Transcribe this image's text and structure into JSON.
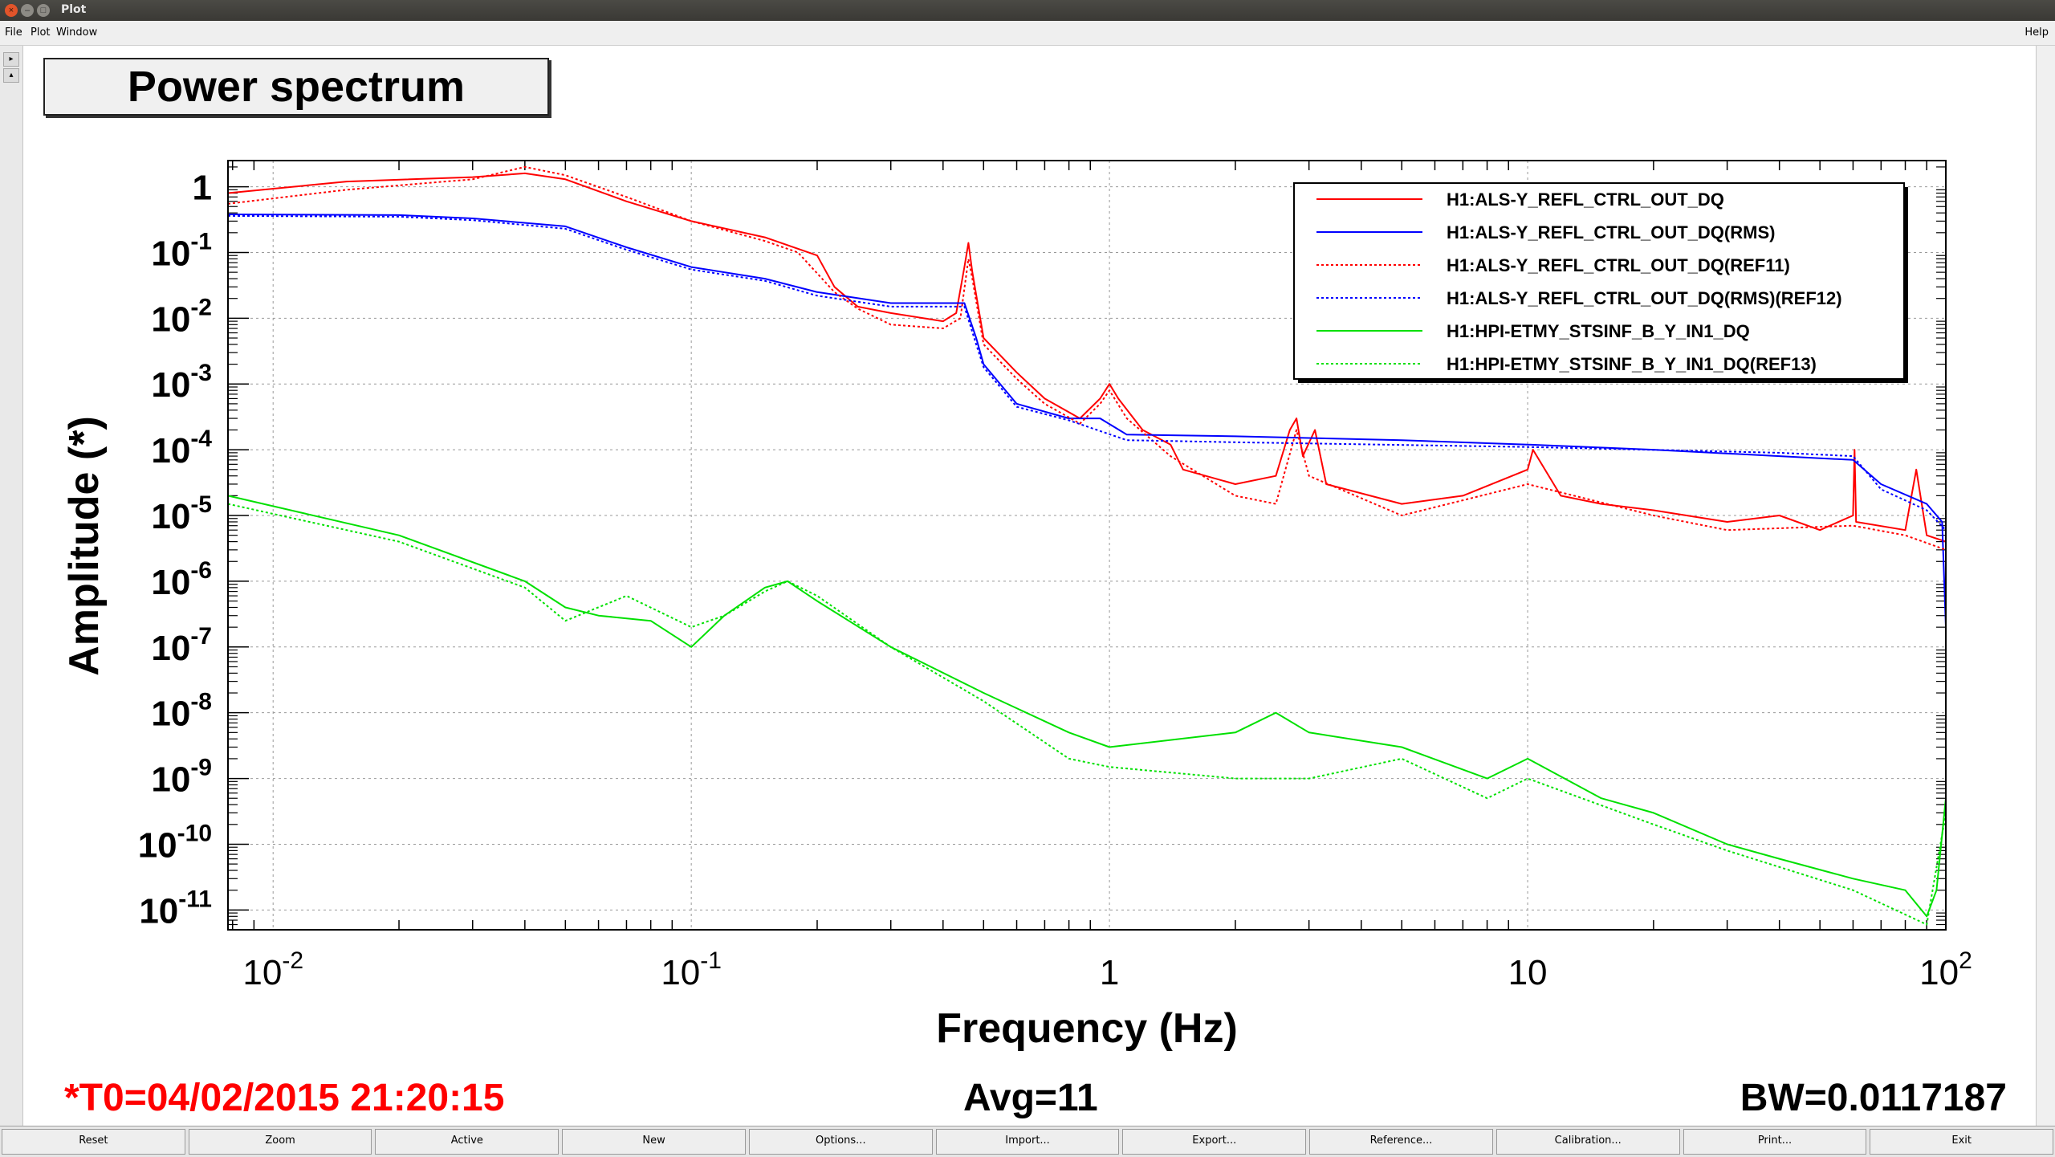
{
  "window": {
    "title": "Plot"
  },
  "menu": {
    "file": "File",
    "plot": "Plot",
    "window": "Window",
    "help": "Help"
  },
  "plot_title": "Power spectrum",
  "footer": {
    "t0": "*T0=04/02/2015 21:20:15",
    "avg": "Avg=11",
    "bw": "BW=0.0117187"
  },
  "buttons": [
    "Reset",
    "Zoom",
    "Active",
    "New",
    "Options...",
    "Import...",
    "Export...",
    "Reference...",
    "Calibration...",
    "Print...",
    "Exit"
  ],
  "colors": {
    "red": "#ff0000",
    "blue": "#0000ff",
    "green": "#00e000"
  },
  "chart_data": {
    "type": "line",
    "title": "Power spectrum",
    "xlabel": "Frequency (Hz)",
    "ylabel": "Amplitude (*)",
    "xscale": "log",
    "yscale": "log",
    "xlim": [
      0.0078,
      100
    ],
    "ylim": [
      5e-12,
      2.5
    ],
    "grid": true,
    "legend_position": "top-right",
    "x_ticks": [
      {
        "value": 0.01,
        "base": "10",
        "exp": "-2"
      },
      {
        "value": 0.1,
        "base": "10",
        "exp": "-1"
      },
      {
        "value": 1,
        "base": "1",
        "exp": ""
      },
      {
        "value": 10,
        "base": "10",
        "exp": ""
      },
      {
        "value": 100,
        "base": "10",
        "exp": "2"
      }
    ],
    "y_ticks": [
      {
        "value": 1,
        "base": "1",
        "exp": ""
      },
      {
        "value": 0.1,
        "base": "10",
        "exp": "-1"
      },
      {
        "value": 0.01,
        "base": "10",
        "exp": "-2"
      },
      {
        "value": 0.001,
        "base": "10",
        "exp": "-3"
      },
      {
        "value": 0.0001,
        "base": "10",
        "exp": "-4"
      },
      {
        "value": 1e-05,
        "base": "10",
        "exp": "-5"
      },
      {
        "value": 1e-06,
        "base": "10",
        "exp": "-6"
      },
      {
        "value": 1e-07,
        "base": "10",
        "exp": "-7"
      },
      {
        "value": 1e-08,
        "base": "10",
        "exp": "-8"
      },
      {
        "value": 1e-09,
        "base": "10",
        "exp": "-9"
      },
      {
        "value": 1e-10,
        "base": "10",
        "exp": "-10"
      },
      {
        "value": 1e-11,
        "base": "10",
        "exp": "-11"
      }
    ],
    "series": [
      {
        "name": "H1:ALS-Y_REFL_CTRL_OUT_DQ",
        "color": "#ff0000",
        "dash": "solid",
        "points": [
          [
            0.0078,
            0.8
          ],
          [
            0.015,
            1.2
          ],
          [
            0.03,
            1.4
          ],
          [
            0.04,
            1.6
          ],
          [
            0.05,
            1.3
          ],
          [
            0.07,
            0.6
          ],
          [
            0.1,
            0.3
          ],
          [
            0.15,
            0.17
          ],
          [
            0.2,
            0.09
          ],
          [
            0.22,
            0.03
          ],
          [
            0.25,
            0.015
          ],
          [
            0.3,
            0.012
          ],
          [
            0.4,
            0.009
          ],
          [
            0.43,
            0.012
          ],
          [
            0.45,
            0.06
          ],
          [
            0.46,
            0.14
          ],
          [
            0.47,
            0.05
          ],
          [
            0.5,
            0.005
          ],
          [
            0.6,
            0.0015
          ],
          [
            0.7,
            0.0006
          ],
          [
            0.85,
            0.0003
          ],
          [
            0.95,
            0.0006
          ],
          [
            1.0,
            0.001
          ],
          [
            1.05,
            0.0006
          ],
          [
            1.2,
            0.0002
          ],
          [
            1.4,
            0.00012
          ],
          [
            1.5,
            5e-05
          ],
          [
            2,
            3e-05
          ],
          [
            2.5,
            4e-05
          ],
          [
            2.7,
            0.0002
          ],
          [
            2.8,
            0.0003
          ],
          [
            2.9,
            8e-05
          ],
          [
            3.1,
            0.0002
          ],
          [
            3.3,
            3e-05
          ],
          [
            5,
            1.5e-05
          ],
          [
            7,
            2e-05
          ],
          [
            10,
            5e-05
          ],
          [
            10.3,
            0.0001
          ],
          [
            12,
            2e-05
          ],
          [
            15,
            1.5e-05
          ],
          [
            20,
            1.2e-05
          ],
          [
            30,
            8e-06
          ],
          [
            40,
            1e-05
          ],
          [
            50,
            6e-06
          ],
          [
            60,
            1e-05
          ],
          [
            60.5,
            0.0001
          ],
          [
            61,
            8e-06
          ],
          [
            80,
            6e-06
          ],
          [
            85,
            5e-05
          ],
          [
            90,
            5e-06
          ],
          [
            100,
            4e-06
          ]
        ]
      },
      {
        "name": "H1:ALS-Y_REFL_CTRL_OUT_DQ(RMS)",
        "color": "#0000ff",
        "dash": "solid",
        "points": [
          [
            0.0078,
            0.38
          ],
          [
            0.02,
            0.37
          ],
          [
            0.03,
            0.33
          ],
          [
            0.05,
            0.25
          ],
          [
            0.07,
            0.12
          ],
          [
            0.1,
            0.06
          ],
          [
            0.15,
            0.04
          ],
          [
            0.2,
            0.025
          ],
          [
            0.3,
            0.017
          ],
          [
            0.45,
            0.017
          ],
          [
            0.48,
            0.005
          ],
          [
            0.5,
            0.002
          ],
          [
            0.6,
            0.0005
          ],
          [
            0.8,
            0.0003
          ],
          [
            0.95,
            0.0003
          ],
          [
            1.1,
            0.00017
          ],
          [
            2,
            0.00016
          ],
          [
            5,
            0.00014
          ],
          [
            10,
            0.00012
          ],
          [
            20,
            0.0001
          ],
          [
            40,
            8e-05
          ],
          [
            60,
            7e-05
          ],
          [
            70,
            3e-05
          ],
          [
            90,
            1.5e-05
          ],
          [
            98,
            8e-06
          ],
          [
            100,
            2e-07
          ]
        ]
      },
      {
        "name": "H1:ALS-Y_REFL_CTRL_OUT_DQ(REF11)",
        "color": "#ff0000",
        "dash": "dotted",
        "points": [
          [
            0.0078,
            0.55
          ],
          [
            0.015,
            0.9
          ],
          [
            0.03,
            1.3
          ],
          [
            0.04,
            2.0
          ],
          [
            0.05,
            1.5
          ],
          [
            0.07,
            0.7
          ],
          [
            0.1,
            0.3
          ],
          [
            0.15,
            0.15
          ],
          [
            0.18,
            0.1
          ],
          [
            0.22,
            0.025
          ],
          [
            0.25,
            0.014
          ],
          [
            0.3,
            0.008
          ],
          [
            0.4,
            0.007
          ],
          [
            0.44,
            0.01
          ],
          [
            0.46,
            0.08
          ],
          [
            0.47,
            0.04
          ],
          [
            0.5,
            0.004
          ],
          [
            0.6,
            0.0012
          ],
          [
            0.7,
            0.0005
          ],
          [
            0.85,
            0.00025
          ],
          [
            0.95,
            0.0005
          ],
          [
            1.0,
            0.0008
          ],
          [
            1.1,
            0.0003
          ],
          [
            1.4,
            8e-05
          ],
          [
            2,
            2e-05
          ],
          [
            2.5,
            1.5e-05
          ],
          [
            2.8,
            0.0002
          ],
          [
            3,
            4e-05
          ],
          [
            5,
            1e-05
          ],
          [
            10,
            3e-05
          ],
          [
            20,
            1e-05
          ],
          [
            30,
            6e-06
          ],
          [
            60,
            7e-06
          ],
          [
            80,
            5e-06
          ],
          [
            100,
            3e-06
          ]
        ]
      },
      {
        "name": "H1:ALS-Y_REFL_CTRL_OUT_DQ(RMS)(REF12)",
        "color": "#0000ff",
        "dash": "dotted",
        "points": [
          [
            0.0078,
            0.36
          ],
          [
            0.02,
            0.35
          ],
          [
            0.03,
            0.31
          ],
          [
            0.05,
            0.23
          ],
          [
            0.07,
            0.11
          ],
          [
            0.1,
            0.055
          ],
          [
            0.15,
            0.037
          ],
          [
            0.2,
            0.022
          ],
          [
            0.3,
            0.015
          ],
          [
            0.45,
            0.015
          ],
          [
            0.48,
            0.004
          ],
          [
            0.5,
            0.0018
          ],
          [
            0.6,
            0.00045
          ],
          [
            0.8,
            0.00028
          ],
          [
            1.1,
            0.00014
          ],
          [
            2,
            0.00013
          ],
          [
            10,
            0.00011
          ],
          [
            40,
            9e-05
          ],
          [
            60,
            8e-05
          ],
          [
            70,
            2.5e-05
          ],
          [
            90,
            1.2e-05
          ],
          [
            100,
            6e-06
          ]
        ]
      },
      {
        "name": "H1:HPI-ETMY_STSINF_B_Y_IN1_DQ",
        "color": "#00e000",
        "dash": "solid",
        "points": [
          [
            0.0078,
            2e-05
          ],
          [
            0.02,
            5e-06
          ],
          [
            0.04,
            1e-06
          ],
          [
            0.05,
            4e-07
          ],
          [
            0.06,
            3e-07
          ],
          [
            0.08,
            2.5e-07
          ],
          [
            0.1,
            1e-07
          ],
          [
            0.12,
            3e-07
          ],
          [
            0.15,
            8e-07
          ],
          [
            0.17,
            1e-06
          ],
          [
            0.2,
            5e-07
          ],
          [
            0.3,
            1e-07
          ],
          [
            0.5,
            2e-08
          ],
          [
            0.8,
            5e-09
          ],
          [
            1,
            3e-09
          ],
          [
            2,
            5e-09
          ],
          [
            2.5,
            1e-08
          ],
          [
            3,
            5e-09
          ],
          [
            5,
            3e-09
          ],
          [
            8,
            1e-09
          ],
          [
            10,
            2e-09
          ],
          [
            15,
            5e-10
          ],
          [
            20,
            3e-10
          ],
          [
            30,
            1e-10
          ],
          [
            40,
            6e-11
          ],
          [
            60,
            3e-11
          ],
          [
            80,
            2e-11
          ],
          [
            90,
            8e-12
          ],
          [
            95,
            2e-11
          ],
          [
            100,
            5e-10
          ]
        ]
      },
      {
        "name": "H1:HPI-ETMY_STSINF_B_Y_IN1_DQ(REF13)",
        "color": "#00e000",
        "dash": "dotted",
        "points": [
          [
            0.0078,
            1.5e-05
          ],
          [
            0.02,
            4e-06
          ],
          [
            0.04,
            8e-07
          ],
          [
            0.05,
            2.5e-07
          ],
          [
            0.07,
            6e-07
          ],
          [
            0.1,
            2e-07
          ],
          [
            0.12,
            3e-07
          ],
          [
            0.15,
            7e-07
          ],
          [
            0.17,
            1e-06
          ],
          [
            0.2,
            6e-07
          ],
          [
            0.3,
            1e-07
          ],
          [
            0.5,
            1.5e-08
          ],
          [
            0.8,
            2e-09
          ],
          [
            1,
            1.5e-09
          ],
          [
            2,
            1e-09
          ],
          [
            3,
            1e-09
          ],
          [
            5,
            2e-09
          ],
          [
            8,
            5e-10
          ],
          [
            10,
            1e-09
          ],
          [
            20,
            2e-10
          ],
          [
            30,
            8e-11
          ],
          [
            60,
            2e-11
          ],
          [
            90,
            6e-12
          ],
          [
            100,
            3e-10
          ]
        ]
      }
    ]
  }
}
